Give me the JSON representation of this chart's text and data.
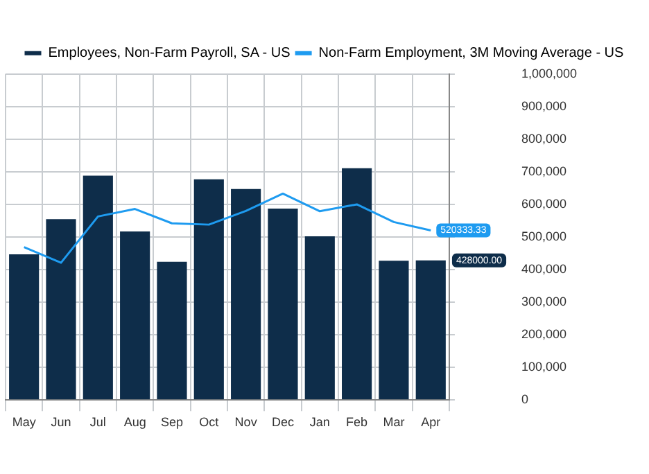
{
  "chart_data": {
    "type": "bar",
    "categories": [
      "May",
      "Jun",
      "Jul",
      "Aug",
      "Sep",
      "Oct",
      "Nov",
      "Dec",
      "Jan",
      "Feb",
      "Mar",
      "Apr"
    ],
    "series": [
      {
        "name": "Employees, Non-Farm Payroll, SA - US",
        "color": "#0e2d4a",
        "values": [
          447000,
          555000,
          688000,
          517000,
          424000,
          677000,
          647000,
          587000,
          502000,
          711000,
          427000,
          428000
        ],
        "value_labels": [
          null,
          null,
          null,
          null,
          null,
          null,
          null,
          null,
          null,
          null,
          null,
          "428000.00"
        ]
      },
      {
        "name": "Non-Farm Employment, 3M Moving Average - US",
        "type": "line",
        "color": "#1e9bf0",
        "values": [
          469000,
          421000,
          563000,
          586000,
          542000,
          538000,
          580000,
          633000,
          579000,
          600000,
          546000,
          520333.33
        ],
        "value_labels": [
          null,
          null,
          null,
          null,
          null,
          null,
          null,
          null,
          null,
          null,
          null,
          "520333.33"
        ]
      }
    ],
    "ylim": [
      0,
      1000000
    ],
    "yticks": [
      0,
      {
        "value": 100000,
        "label": "100,000"
      },
      {
        "value": 200000,
        "label": "200,000"
      },
      {
        "value": 300000,
        "label": "300,000"
      },
      {
        "value": 400000,
        "label": "400,000"
      },
      {
        "value": 500000,
        "label": "500,000"
      },
      {
        "value": 600000,
        "label": "600,000"
      },
      {
        "value": 700000,
        "label": "700,000"
      },
      {
        "value": 800000,
        "label": "800,000"
      },
      {
        "value": 900000,
        "label": "900,000"
      },
      {
        "value": 1000000,
        "label": "1,000,000"
      }
    ],
    "grid": true,
    "legend": "top",
    "marker": "none",
    "line_style": "solid"
  }
}
